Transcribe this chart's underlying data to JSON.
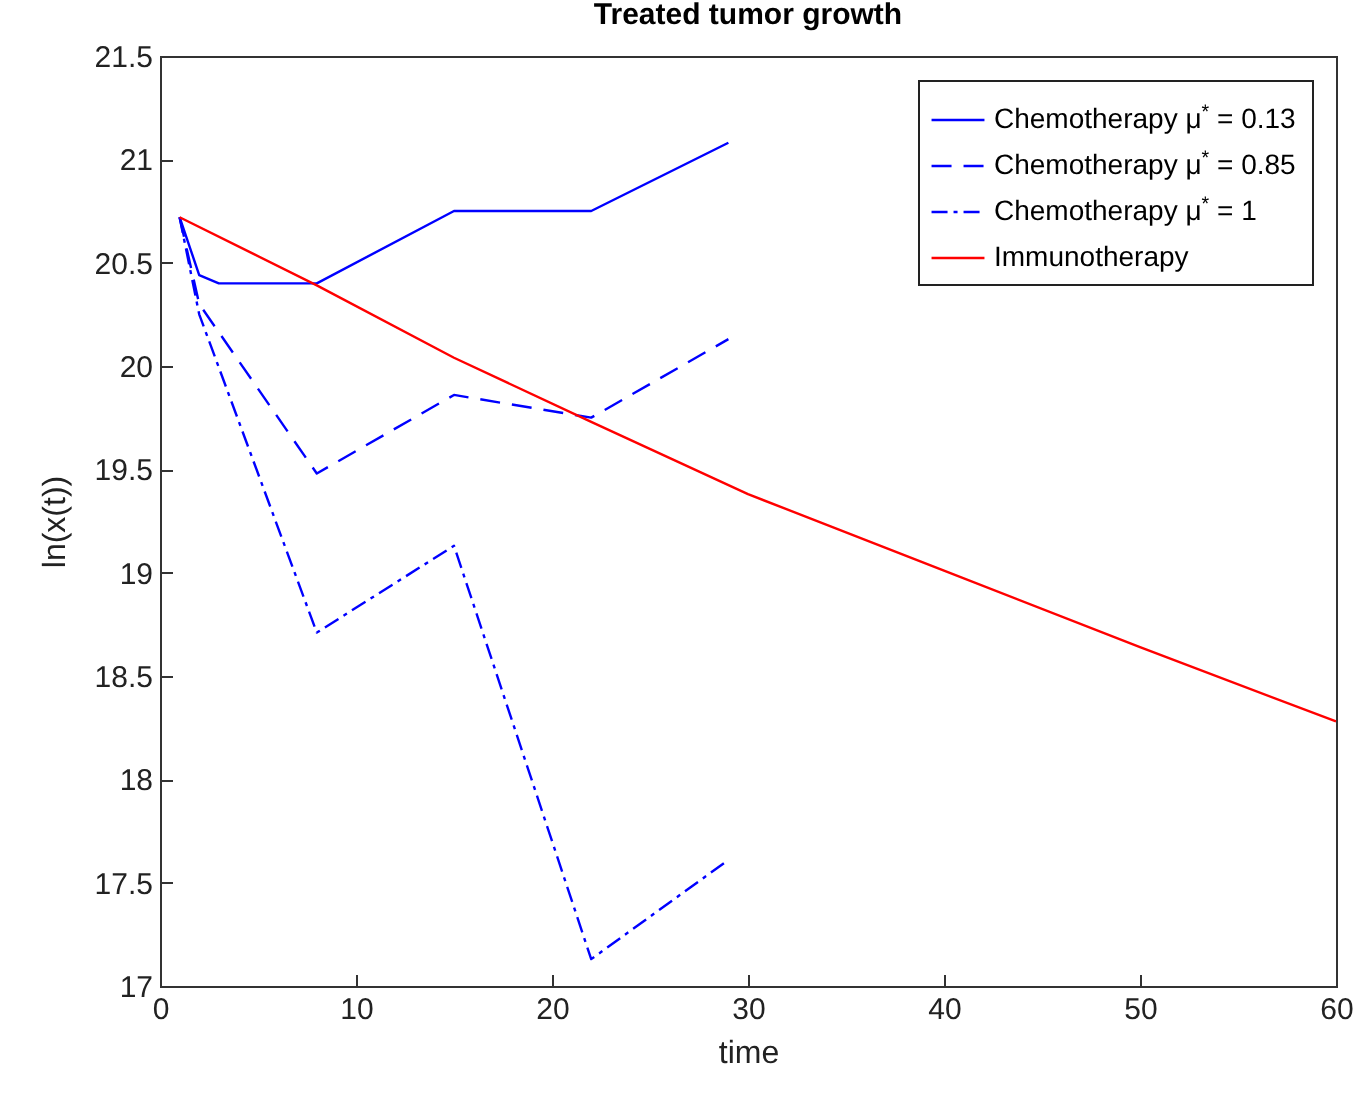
{
  "chart_data": {
    "type": "line",
    "title": "Treated tumor growth",
    "xlabel": "time",
    "ylabel": "ln(x(t))",
    "xlim": [
      0,
      60
    ],
    "xticks": [
      0,
      10,
      20,
      30,
      40,
      50,
      60
    ],
    "ylim": [
      17,
      21.5
    ],
    "yticks": [
      17,
      17.5,
      18,
      18.5,
      19,
      19.5,
      20,
      20.5,
      21,
      21.5
    ],
    "grid": false,
    "legend": "top right",
    "marker": "none",
    "series": [
      {
        "name": "Chemotherapy μ$^{*}$ = 0.13",
        "color": "#0000ff",
        "line_style": "solid",
        "x": [
          1,
          2,
          3,
          8,
          15,
          22,
          29
        ],
        "values": [
          20.72,
          20.44,
          20.4,
          20.4,
          20.75,
          20.75,
          21.08
        ]
      },
      {
        "name": "Chemotherapy μ$^{*}$ = 0.85",
        "color": "#0000ff",
        "line_style": "dashed",
        "x": [
          1,
          2,
          8,
          15,
          22,
          29
        ],
        "values": [
          20.72,
          20.3,
          19.48,
          19.86,
          19.75,
          20.13
        ]
      },
      {
        "name": "Chemotherapy μ$^{*}$ = 1",
        "color": "#0000ff",
        "line_style": "dashdot",
        "x": [
          1,
          2,
          8,
          15,
          22,
          29
        ],
        "values": [
          20.72,
          20.25,
          18.71,
          19.13,
          17.13,
          17.61
        ]
      },
      {
        "name": "Immunotherapy",
        "color": "#ff0000",
        "line_style": "solid",
        "x": [
          1,
          8,
          15,
          22,
          30,
          40,
          50,
          60
        ],
        "values": [
          20.72,
          20.39,
          20.04,
          19.73,
          19.38,
          19.01,
          18.64,
          18.28
        ]
      }
    ]
  }
}
